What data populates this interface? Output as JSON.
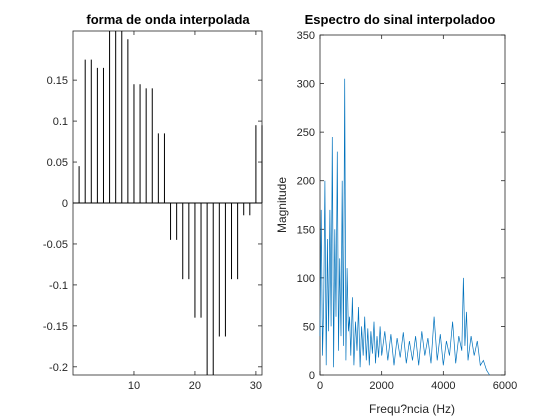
{
  "chart_data": [
    {
      "type": "stem",
      "title": "forma de onda interpolada",
      "xlabel": "",
      "ylabel": "",
      "xlim": [
        0,
        31
      ],
      "ylim": [
        -0.21,
        0.21
      ],
      "xticks": [
        10,
        20,
        30
      ],
      "xtick_labels": [
        "10",
        "20",
        "30"
      ],
      "yticks": [
        0.15,
        0.1,
        0.05,
        0,
        -0.05,
        -0.1,
        -0.15,
        -0.2
      ],
      "ytick_labels": [
        "0.15",
        "0.1",
        "0.05",
        "0",
        "-0.05",
        "-0.1",
        "-0.15",
        "-0.2"
      ],
      "x": [
        1,
        2,
        3,
        4,
        5,
        6,
        7,
        8,
        9,
        10,
        11,
        12,
        13,
        14,
        15,
        16,
        17,
        18,
        19,
        20,
        21,
        22,
        23,
        24,
        25,
        26,
        27,
        28,
        29,
        30,
        31
      ],
      "values": [
        0.045,
        0.175,
        0.175,
        0.165,
        0.165,
        0.21,
        0.21,
        0.21,
        0.2,
        0.145,
        0.145,
        0.14,
        0.14,
        0.085,
        0.085,
        -0.045,
        -0.045,
        -0.093,
        -0.093,
        -0.14,
        -0.14,
        -0.21,
        -0.21,
        -0.163,
        -0.163,
        -0.093,
        -0.093,
        -0.015,
        -0.015,
        0.095,
        0.095
      ],
      "color": "#000000"
    },
    {
      "type": "line",
      "title": "Espectro do sinal interpoladoo",
      "xlabel": "Frequ?ncia (Hz)",
      "ylabel": "Magnitude",
      "xlim": [
        0,
        6000
      ],
      "ylim": [
        0,
        350
      ],
      "xticks": [
        0,
        2000,
        4000,
        6000
      ],
      "xtick_labels": [
        "0",
        "2000",
        "4000",
        "6000"
      ],
      "yticks": [
        0,
        50,
        100,
        150,
        200,
        250,
        300,
        350
      ],
      "ytick_labels": [
        "0",
        "50",
        "100",
        "150",
        "200",
        "250",
        "300",
        "350"
      ],
      "series": [
        {
          "x": [
            0,
            40,
            80,
            120,
            160,
            200,
            240,
            280,
            320,
            360,
            400,
            440,
            480,
            520,
            560,
            600,
            640,
            680,
            720,
            760,
            800,
            840,
            880,
            920,
            960,
            1000,
            1050,
            1100,
            1150,
            1200,
            1250,
            1300,
            1350,
            1400,
            1450,
            1500,
            1550,
            1600,
            1650,
            1700,
            1750,
            1800,
            1850,
            1900,
            1950,
            2000,
            2100,
            2200,
            2300,
            2400,
            2500,
            2600,
            2700,
            2800,
            2900,
            3000,
            3100,
            3200,
            3300,
            3400,
            3500,
            3600,
            3700,
            3800,
            3900,
            4000,
            4100,
            4200,
            4300,
            4400,
            4500,
            4600,
            4650,
            4700,
            4750,
            4800,
            4900,
            5000,
            5100,
            5200,
            5300,
            5400,
            5500
          ],
          "y": [
            40,
            170,
            20,
            75,
            200,
            10,
            140,
            45,
            170,
            50,
            245,
            8,
            150,
            60,
            230,
            25,
            120,
            40,
            200,
            30,
            305,
            15,
            110,
            45,
            60,
            20,
            80,
            10,
            55,
            25,
            70,
            8,
            50,
            20,
            60,
            15,
            48,
            10,
            45,
            22,
            55,
            12,
            40,
            18,
            50,
            20,
            45,
            15,
            42,
            10,
            38,
            18,
            44,
            12,
            35,
            15,
            40,
            10,
            45,
            20,
            38,
            12,
            60,
            15,
            42,
            10,
            35,
            20,
            55,
            12,
            40,
            25,
            100,
            30,
            65,
            15,
            40,
            20,
            35,
            10,
            15,
            5,
            0
          ],
          "color": "#0072bd"
        }
      ]
    }
  ]
}
